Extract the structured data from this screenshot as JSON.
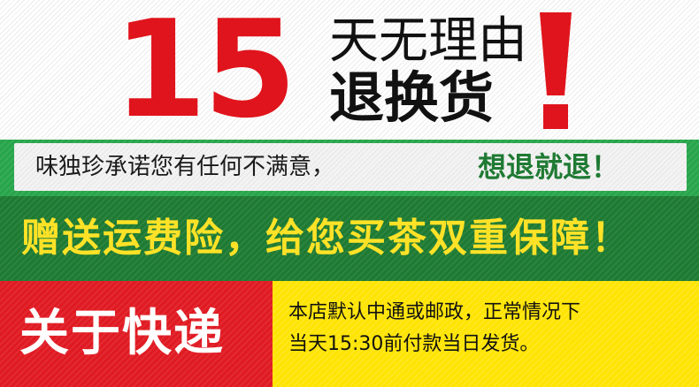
{
  "banner": {
    "days_number": "15",
    "title_line1": "天无理由",
    "title_line2": "退换货",
    "exclaim_color": "#e0141c",
    "number_color": "#e0141c"
  },
  "promise": {
    "text": "味独珍承诺您有任何不满意，",
    "highlight": "想退就退！",
    "strip_color": "#27a54a"
  },
  "shipping_insurance": {
    "text": "赠送运费险，给您买茶双重保障！",
    "text_color": "#ffe227",
    "strip_color": "#1d7a32"
  },
  "delivery": {
    "title": "关于快递",
    "line1": "本店默认中通或邮政，正常情况下",
    "line2": "当天15:30前付款当日发货。",
    "title_bg": "#e01a22",
    "info_bg": "#ffe400"
  }
}
